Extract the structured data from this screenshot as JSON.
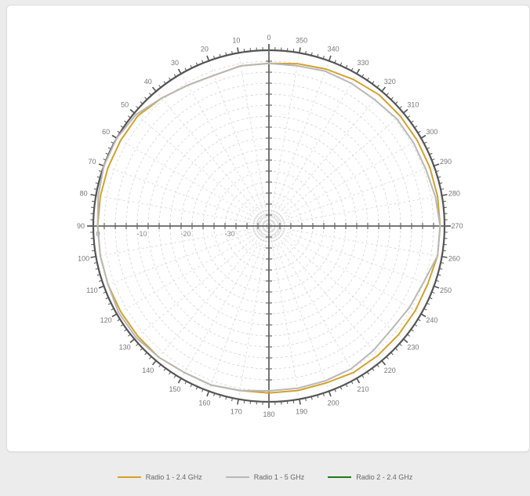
{
  "chart_data": {
    "type": "polar-line",
    "angle_direction": "counterclockwise",
    "angle_zero": "top",
    "angle_labels": [
      "0",
      "10",
      "20",
      "30",
      "40",
      "50",
      "60",
      "70",
      "80",
      "90",
      "100",
      "110",
      "120",
      "130",
      "140",
      "150",
      "160",
      "170",
      "180",
      "190",
      "200",
      "210",
      "220",
      "230",
      "240",
      "250",
      "260",
      "270",
      "280",
      "290",
      "300",
      "310",
      "320",
      "330",
      "340",
      "350"
    ],
    "radial_labels": [
      "0",
      "-10",
      "-20",
      "-30"
    ],
    "radial_range": [
      -40,
      0
    ],
    "grid": true,
    "legend_position": "bottom",
    "series": [
      {
        "name": "Radio 1 - 2.4 GHz",
        "color": "#d4a12c",
        "angles": [
          0,
          10,
          20,
          30,
          40,
          50,
          60,
          70,
          80,
          90,
          100,
          110,
          120,
          130,
          140,
          150,
          160,
          170,
          180,
          190,
          200,
          210,
          220,
          230,
          240,
          250,
          260,
          270,
          280,
          290,
          300,
          310,
          320,
          330,
          340,
          350
        ],
        "values": [
          -3,
          -3,
          -3.5,
          -3,
          -2,
          -1,
          -1,
          -1,
          -1,
          -1,
          -1,
          -1,
          -1,
          -1,
          -1,
          -1.5,
          -1.5,
          -2,
          -2,
          -2,
          -2,
          -1.5,
          -1.5,
          -1.5,
          -1.5,
          -1.5,
          -1,
          -1,
          -1,
          -1,
          -1,
          -1,
          -1,
          -1.5,
          -2,
          -2.5
        ]
      },
      {
        "name": "Radio 1 - 5 GHz",
        "color": "#b8b8b8",
        "angles": [
          0,
          10,
          20,
          30,
          40,
          50,
          60,
          70,
          80,
          90,
          100,
          110,
          120,
          130,
          140,
          150,
          160,
          170,
          180,
          190,
          200,
          210,
          220,
          230,
          240,
          250,
          260,
          270,
          280,
          290,
          300,
          310,
          320,
          330,
          340,
          350
        ],
        "values": [
          -3,
          -3,
          -3.5,
          -3,
          -2,
          -0.5,
          0,
          0,
          -0.5,
          -1,
          -1,
          -1,
          -0.5,
          -0.5,
          -1,
          -1.5,
          -1.5,
          -2,
          -2.5,
          -2.5,
          -2.5,
          -2.5,
          -3,
          -3.5,
          -3,
          -2.5,
          -1,
          -1,
          -1.5,
          -2,
          -2,
          -2,
          -2.5,
          -2.5,
          -2.5,
          -3
        ]
      },
      {
        "name": "Radio 2 - 2.4 GHz",
        "color": "#1e7a1e",
        "angles": [],
        "values": []
      }
    ]
  }
}
